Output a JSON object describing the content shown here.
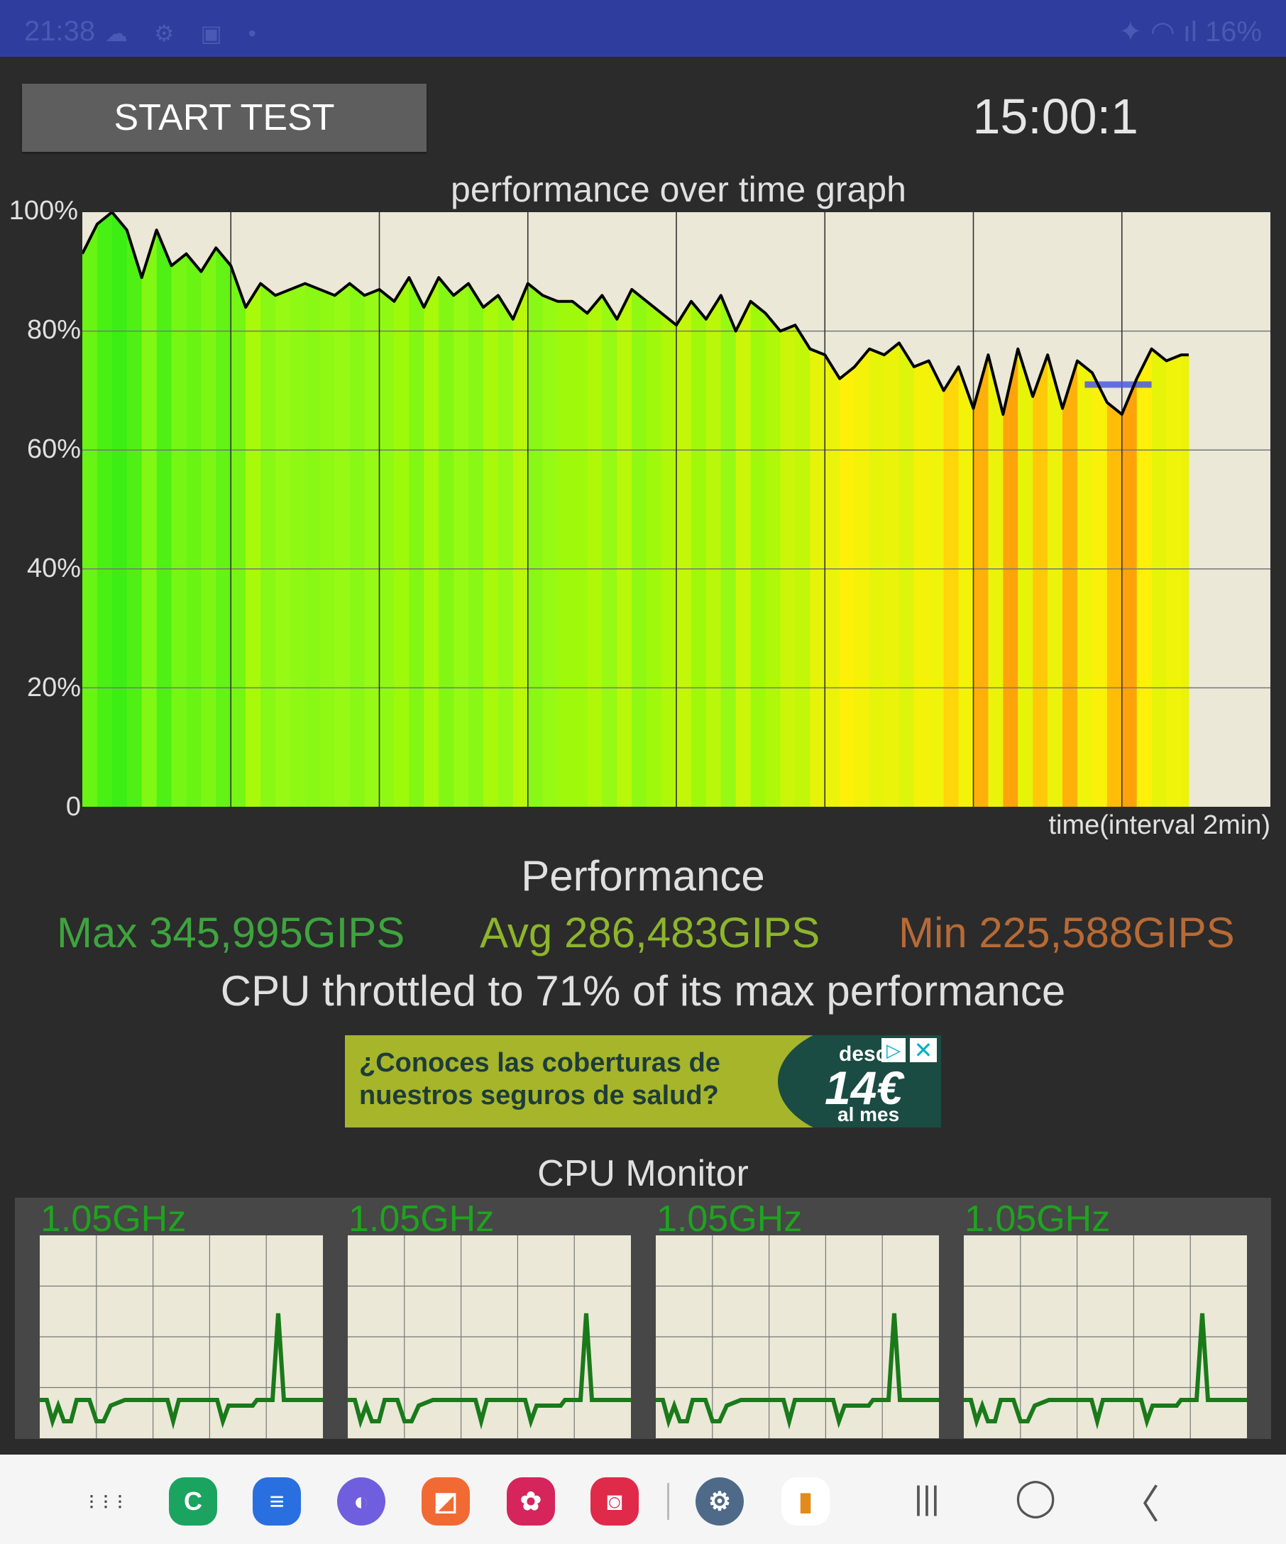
{
  "status_bar": {
    "time": "21:38",
    "battery": "16%",
    "icons": [
      "cloud-icon",
      "settings-icon",
      "gallery-icon",
      "dot-icon",
      "mute-icon",
      "wifi-icon",
      "signal-icon",
      "battery-icon"
    ]
  },
  "controls": {
    "start_button": "START TEST",
    "timer": "15:00:1"
  },
  "graph": {
    "title": "performance over time graph",
    "y_ticks": [
      "100%",
      "80%",
      "60%",
      "40%",
      "20%",
      "0"
    ],
    "x_label": "time(interval 2min)"
  },
  "performance": {
    "heading": "Performance",
    "max": "Max 345,995GIPS",
    "avg": "Avg 286,483GIPS",
    "min": "Min 225,588GIPS",
    "throttle": "CPU throttled to 71% of its max performance",
    "colors": {
      "max": "#3ea43e",
      "avg": "#8db52b",
      "min": "#b86a35"
    }
  },
  "ad": {
    "text": "¿Conoces las coberturas de\nnuestros seguros de salud?",
    "desde": "desde",
    "price": "14€",
    "per_month": "al mes"
  },
  "cpu_monitor": {
    "title": "CPU Monitor",
    "cores": [
      {
        "freq": "1.05GHz"
      },
      {
        "freq": "1.05GHz"
      },
      {
        "freq": "1.05GHz"
      },
      {
        "freq": "1.05GHz"
      }
    ]
  },
  "nav_bar": {
    "apps": [
      {
        "name": "app-drawer-icon",
        "color": "#f5f5f5",
        "glyph": "⋮⋮⋮"
      },
      {
        "name": "whatsapp-c-icon",
        "color": "#1aa460",
        "glyph": "C"
      },
      {
        "name": "messages-icon",
        "color": "#2a6fe0",
        "glyph": "≡"
      },
      {
        "name": "internet-icon",
        "color": "#6f5fde",
        "glyph": "◐"
      },
      {
        "name": "notes-icon",
        "color": "#f26a33",
        "glyph": "◩"
      },
      {
        "name": "flower-icon",
        "color": "#d6245d",
        "glyph": "✿"
      },
      {
        "name": "camera-icon",
        "color": "#e02a4a",
        "glyph": "◙"
      },
      {
        "name": "settings-icon",
        "color": "#4f6a88",
        "glyph": "⚙"
      },
      {
        "name": "battery-app-icon",
        "color": "#f2c14a",
        "glyph": "▮"
      }
    ],
    "buttons": [
      "recents-button",
      "home-button",
      "back-button"
    ],
    "glyphs": {
      "recents": "|||",
      "home": "◯",
      "back": "〈"
    }
  },
  "chart_data": {
    "type": "area",
    "title": "performance over time graph",
    "xlabel": "time(interval 2min)",
    "ylabel": "",
    "ylim": [
      0,
      100
    ],
    "x_unit": "minutes",
    "xlim": [
      0,
      16
    ],
    "x": [
      0,
      0.2,
      0.4,
      0.6,
      0.8,
      1.0,
      1.2,
      1.4,
      1.6,
      1.8,
      2.0,
      2.2,
      2.4,
      2.6,
      2.8,
      3.0,
      3.2,
      3.4,
      3.6,
      3.8,
      4.0,
      4.2,
      4.4,
      4.6,
      4.8,
      5.0,
      5.2,
      5.4,
      5.6,
      5.8,
      6.0,
      6.2,
      6.4,
      6.6,
      6.8,
      7.0,
      7.2,
      7.4,
      7.6,
      7.8,
      8.0,
      8.2,
      8.4,
      8.6,
      8.8,
      9.0,
      9.2,
      9.4,
      9.6,
      9.8,
      10.0,
      10.2,
      10.4,
      10.6,
      10.8,
      11.0,
      11.2,
      11.4,
      11.6,
      11.8,
      12.0,
      12.2,
      12.4,
      12.6,
      12.8,
      13.0,
      13.2,
      13.4,
      13.6,
      13.8,
      14.0,
      14.2,
      14.4,
      14.6,
      14.8,
      14.9
    ],
    "series": [
      {
        "values": [
          93,
          98,
          100,
          97,
          89,
          97,
          91,
          93,
          90,
          94,
          91,
          84,
          88,
          86,
          87,
          88,
          87,
          86,
          88,
          86,
          87,
          85,
          89,
          84,
          89,
          86,
          88,
          84,
          86,
          82,
          88,
          86,
          85,
          85,
          83,
          86,
          82,
          87,
          85,
          83,
          81,
          85,
          82,
          86,
          80,
          85,
          83,
          80,
          81,
          77,
          76,
          72,
          74,
          77,
          76,
          78,
          74,
          75,
          70,
          74,
          67,
          76,
          66,
          77,
          69,
          76,
          67,
          75,
          73,
          68,
          66,
          72,
          77,
          75,
          76,
          76
        ]
      }
    ],
    "marker": {
      "type": "horizontal",
      "y": 71,
      "x_range": [
        13.5,
        14.4
      ],
      "label": ""
    },
    "y_ticks": [
      0,
      20,
      40,
      60,
      80,
      100
    ]
  }
}
